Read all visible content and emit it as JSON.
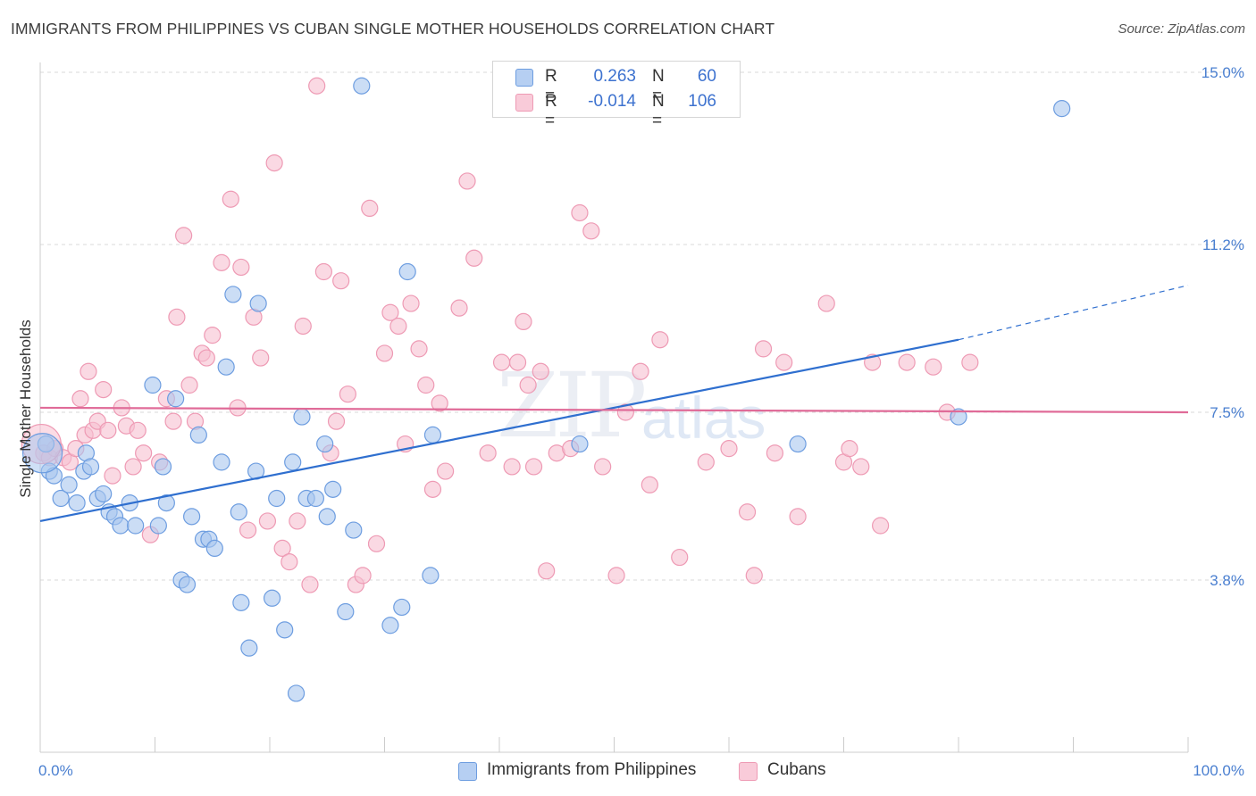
{
  "title": "IMMIGRANTS FROM PHILIPPINES VS CUBAN SINGLE MOTHER HOUSEHOLDS CORRELATION CHART",
  "source": "Source: ZipAtlas.com",
  "watermark": {
    "zip": "ZIP",
    "atlas": "atlas"
  },
  "legend": {
    "series1": {
      "r_label": "R =",
      "r_value": "0.263",
      "n_label": "N =",
      "n_value": "60"
    },
    "series2": {
      "r_label": "R =",
      "r_value": "-0.014",
      "n_label": "N =",
      "n_value": "106"
    }
  },
  "bottom_legend": {
    "series1": "Immigrants from Philippines",
    "series2": "Cubans"
  },
  "colors": {
    "series1_fill": "#a8c6ef",
    "series1_stroke": "#6d9de0",
    "series1_line": "#2f6fcf",
    "series2_fill": "#f7c0d0",
    "series2_stroke": "#ee9ab4",
    "series2_line": "#e06b98",
    "grid": "#dadada",
    "tick_text": "#4a7fd0"
  },
  "chart_data": {
    "type": "scatter",
    "title": "IMMIGRANTS FROM PHILIPPINES VS CUBAN SINGLE MOTHER HOUSEHOLDS CORRELATION CHART",
    "xlabel": "",
    "ylabel": "Single Mother Households",
    "xlim": [
      0,
      100
    ],
    "ylim": [
      0,
      15.5
    ],
    "x_tick_labels": [
      "0.0%",
      "100.0%"
    ],
    "y_ticks": [
      3.8,
      7.5,
      11.2,
      15.0
    ],
    "y_tick_labels": [
      "3.8%",
      "7.5%",
      "11.2%",
      "15.0%"
    ],
    "grid": "horizontal dashed",
    "legend_position": "top-center",
    "series": [
      {
        "name": "Immigrants from Philippines",
        "trend": {
          "x0": 0,
          "y0": 5.1,
          "x1": 80,
          "y1": 9.1,
          "dashed_to_x": 100,
          "dashed_to_y": 10.3
        },
        "points": [
          [
            0.5,
            6.8
          ],
          [
            0.8,
            6.2
          ],
          [
            1.2,
            6.1
          ],
          [
            1.8,
            5.6
          ],
          [
            2.5,
            5.9
          ],
          [
            3.2,
            5.5
          ],
          [
            3.8,
            6.2
          ],
          [
            4.0,
            6.6
          ],
          [
            4.4,
            6.3
          ],
          [
            5.0,
            5.6
          ],
          [
            5.5,
            5.7
          ],
          [
            6.0,
            5.3
          ],
          [
            6.5,
            5.2
          ],
          [
            7.0,
            5.0
          ],
          [
            7.8,
            5.5
          ],
          [
            8.3,
            5.0
          ],
          [
            9.8,
            8.1
          ],
          [
            10.3,
            5.0
          ],
          [
            10.7,
            6.3
          ],
          [
            11.0,
            5.5
          ],
          [
            11.8,
            7.8
          ],
          [
            12.3,
            3.8
          ],
          [
            12.8,
            3.7
          ],
          [
            13.2,
            5.2
          ],
          [
            13.8,
            7.0
          ],
          [
            14.2,
            4.7
          ],
          [
            14.7,
            4.7
          ],
          [
            15.2,
            4.5
          ],
          [
            15.8,
            6.4
          ],
          [
            16.2,
            8.5
          ],
          [
            16.8,
            10.1
          ],
          [
            17.3,
            5.3
          ],
          [
            17.5,
            3.3
          ],
          [
            18.2,
            2.3
          ],
          [
            18.8,
            6.2
          ],
          [
            19.0,
            9.9
          ],
          [
            20.2,
            3.4
          ],
          [
            20.6,
            5.6
          ],
          [
            21.3,
            2.7
          ],
          [
            22.0,
            6.4
          ],
          [
            22.3,
            1.3
          ],
          [
            22.8,
            7.4
          ],
          [
            23.2,
            5.6
          ],
          [
            24.0,
            5.6
          ],
          [
            24.8,
            6.8
          ],
          [
            25.0,
            5.2
          ],
          [
            25.5,
            5.8
          ],
          [
            26.6,
            3.1
          ],
          [
            27.3,
            4.9
          ],
          [
            28.0,
            14.7
          ],
          [
            30.5,
            2.8
          ],
          [
            31.5,
            3.2
          ],
          [
            32.0,
            10.6
          ],
          [
            34.0,
            3.9
          ],
          [
            34.2,
            7.0
          ],
          [
            47.0,
            6.8
          ],
          [
            66.0,
            6.8
          ],
          [
            80.0,
            7.4
          ],
          [
            89.0,
            14.2
          ],
          [
            0.2,
            6.6
          ]
        ]
      },
      {
        "name": "Cubans",
        "trend": {
          "x0": 0,
          "y0": 7.6,
          "x1": 100,
          "y1": 7.5
        },
        "points": [
          [
            0.3,
            6.6
          ],
          [
            0.8,
            6.5
          ],
          [
            1.3,
            6.7
          ],
          [
            2.0,
            6.5
          ],
          [
            2.6,
            6.4
          ],
          [
            3.1,
            6.7
          ],
          [
            3.5,
            7.8
          ],
          [
            3.9,
            7.0
          ],
          [
            4.2,
            8.4
          ],
          [
            4.6,
            7.1
          ],
          [
            5.0,
            7.3
          ],
          [
            5.5,
            8.0
          ],
          [
            5.9,
            7.1
          ],
          [
            6.3,
            6.1
          ],
          [
            7.1,
            7.6
          ],
          [
            7.5,
            7.2
          ],
          [
            8.1,
            6.3
          ],
          [
            8.5,
            7.1
          ],
          [
            9.0,
            6.6
          ],
          [
            9.6,
            4.8
          ],
          [
            10.4,
            6.4
          ],
          [
            11.0,
            7.8
          ],
          [
            11.6,
            7.3
          ],
          [
            11.9,
            9.6
          ],
          [
            12.5,
            11.4
          ],
          [
            13.0,
            8.1
          ],
          [
            13.5,
            7.3
          ],
          [
            14.1,
            8.8
          ],
          [
            14.5,
            8.7
          ],
          [
            15.0,
            9.2
          ],
          [
            15.8,
            10.8
          ],
          [
            16.6,
            12.2
          ],
          [
            17.2,
            7.6
          ],
          [
            17.5,
            10.7
          ],
          [
            18.1,
            4.9
          ],
          [
            18.6,
            9.6
          ],
          [
            19.2,
            8.7
          ],
          [
            19.8,
            5.1
          ],
          [
            20.4,
            13.0
          ],
          [
            21.1,
            4.5
          ],
          [
            21.7,
            4.2
          ],
          [
            22.4,
            5.1
          ],
          [
            22.9,
            9.4
          ],
          [
            23.5,
            3.7
          ],
          [
            24.1,
            14.7
          ],
          [
            24.7,
            10.6
          ],
          [
            25.3,
            6.6
          ],
          [
            25.8,
            7.3
          ],
          [
            26.2,
            10.4
          ],
          [
            26.8,
            7.9
          ],
          [
            27.5,
            3.7
          ],
          [
            28.1,
            3.9
          ],
          [
            28.7,
            12.0
          ],
          [
            29.3,
            4.6
          ],
          [
            30.0,
            8.8
          ],
          [
            30.5,
            9.7
          ],
          [
            31.2,
            9.4
          ],
          [
            31.8,
            6.8
          ],
          [
            32.3,
            9.9
          ],
          [
            33.0,
            8.9
          ],
          [
            33.6,
            8.1
          ],
          [
            34.2,
            5.8
          ],
          [
            34.8,
            7.7
          ],
          [
            35.3,
            6.2
          ],
          [
            36.5,
            9.8
          ],
          [
            37.2,
            12.6
          ],
          [
            37.8,
            10.9
          ],
          [
            39.0,
            6.6
          ],
          [
            40.2,
            8.6
          ],
          [
            41.1,
            6.3
          ],
          [
            41.6,
            8.6
          ],
          [
            42.1,
            9.5
          ],
          [
            42.5,
            8.1
          ],
          [
            43.0,
            6.3
          ],
          [
            43.6,
            8.4
          ],
          [
            44.1,
            4.0
          ],
          [
            45.0,
            6.6
          ],
          [
            46.2,
            6.7
          ],
          [
            47.0,
            11.9
          ],
          [
            48.0,
            11.5
          ],
          [
            49.0,
            6.3
          ],
          [
            50.2,
            3.9
          ],
          [
            51.0,
            7.5
          ],
          [
            52.3,
            8.4
          ],
          [
            53.1,
            5.9
          ],
          [
            54.0,
            9.1
          ],
          [
            55.7,
            4.3
          ],
          [
            58.0,
            6.4
          ],
          [
            60.0,
            6.7
          ],
          [
            61.6,
            5.3
          ],
          [
            62.2,
            3.9
          ],
          [
            63.0,
            8.9
          ],
          [
            64.0,
            6.6
          ],
          [
            64.8,
            8.6
          ],
          [
            66.0,
            5.2
          ],
          [
            68.5,
            9.9
          ],
          [
            70.0,
            6.4
          ],
          [
            70.5,
            6.7
          ],
          [
            71.5,
            6.3
          ],
          [
            72.5,
            8.6
          ],
          [
            73.2,
            5.0
          ],
          [
            75.5,
            8.6
          ],
          [
            77.8,
            8.5
          ],
          [
            79.0,
            7.5
          ],
          [
            81.0,
            8.6
          ],
          [
            0.1,
            6.8
          ]
        ]
      }
    ]
  }
}
